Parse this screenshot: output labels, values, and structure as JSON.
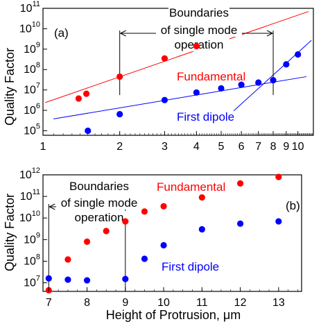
{
  "chart_data": [
    {
      "panel": "(a)",
      "type": "scatter",
      "x_scale": "log",
      "y_scale": "log",
      "xlim": [
        1,
        11.5
      ],
      "ylim": [
        60000,
        100000000000
      ],
      "ylabel": "Quality Factor",
      "xticks": [
        {
          "v": 1,
          "label": "1"
        },
        {
          "v": 2,
          "label": "2"
        },
        {
          "v": 3,
          "label": "3"
        },
        {
          "v": 4,
          "label": "4"
        },
        {
          "v": 5,
          "label": "5"
        },
        {
          "v": 6,
          "label": "6"
        },
        {
          "v": 7,
          "label": "7"
        },
        {
          "v": 8,
          "label": "8"
        },
        {
          "v": 9,
          "label": "9"
        },
        {
          "v": 10,
          "label": "10"
        }
      ],
      "yticks": [
        {
          "v": 100000,
          "base": "10",
          "exp": "5"
        },
        {
          "v": 1000000,
          "base": "10",
          "exp": "6"
        },
        {
          "v": 10000000,
          "base": "10",
          "exp": "7"
        },
        {
          "v": 100000000,
          "base": "10",
          "exp": "8"
        },
        {
          "v": 1000000000,
          "base": "10",
          "exp": "9"
        },
        {
          "v": 10000000000,
          "base": "10",
          "exp": "10"
        },
        {
          "v": 100000000000,
          "base": "10",
          "exp": "11"
        }
      ],
      "series": [
        {
          "name": "Fundamental",
          "color": "#ff0000",
          "x": [
            1.38,
            1.48,
            2.0,
            3.0,
            4.0
          ],
          "y": [
            3800000,
            6500000,
            45000000,
            350000000,
            1400000000
          ],
          "fit_line": {
            "x": [
              1.02,
              11.0
            ],
            "y": [
              2400000,
              70000000000
            ]
          }
        },
        {
          "name": "First dipole",
          "color": "#0000ff",
          "x": [
            1.5,
            2.0,
            3.0,
            4.0,
            5.0,
            6.0,
            7.0,
            8.0,
            9.0,
            10.0
          ],
          "y": [
            100000,
            650000,
            3200000,
            7500000,
            12000000,
            18000000,
            23000000,
            30000000,
            180000000,
            550000000
          ],
          "fit_lines": [
            {
              "x": [
                1.1,
                10.8
              ],
              "y": [
                380000,
                45000000
              ]
            },
            {
              "x": [
                5.6,
                11.3
              ],
              "y": [
                950000,
                2700000000
              ]
            }
          ]
        }
      ],
      "annotation": {
        "text_line1": "Boundaries",
        "text_line2": "of single mode",
        "text_line3": "operation",
        "x_from": 2,
        "x_to": 8
      }
    },
    {
      "panel": "(b)",
      "type": "scatter",
      "x_scale": "linear",
      "y_scale": "log",
      "xlim": [
        6.85,
        13.6
      ],
      "ylim": [
        4000000,
        1000000000000
      ],
      "xlabel_main": "Height of Protrusion, ",
      "xlabel_unit": "μm",
      "ylabel": "Quality Factor",
      "xticks": [
        {
          "v": 7,
          "label": "7"
        },
        {
          "v": 8,
          "label": "8"
        },
        {
          "v": 9,
          "label": "9"
        },
        {
          "v": 10,
          "label": "10"
        },
        {
          "v": 11,
          "label": "11"
        },
        {
          "v": 12,
          "label": "12"
        },
        {
          "v": 13,
          "label": "13"
        }
      ],
      "yticks": [
        {
          "v": 10000000,
          "base": "10",
          "exp": "7"
        },
        {
          "v": 100000000,
          "base": "10",
          "exp": "8"
        },
        {
          "v": 1000000000,
          "base": "10",
          "exp": "9"
        },
        {
          "v": 10000000000,
          "base": "10",
          "exp": "10"
        },
        {
          "v": 100000000000,
          "base": "10",
          "exp": "11"
        },
        {
          "v": 1000000000000,
          "base": "10",
          "exp": "12"
        }
      ],
      "series": [
        {
          "name": "Fundamental",
          "color": "#ff0000",
          "x": [
            7.0,
            7.5,
            8.0,
            8.5,
            9.0,
            9.5,
            10.0,
            11.0,
            12.0,
            13.0
          ],
          "y": [
            4500000,
            120000000,
            800000000,
            2500000000,
            7000000000,
            20000000000,
            35000000000,
            90000000000,
            400000000000,
            800000000000
          ]
        },
        {
          "name": "First dipole",
          "color": "#0000ff",
          "x": [
            7.0,
            7.5,
            8.0,
            9.0,
            9.5,
            10.0,
            11.0,
            12.0,
            13.0
          ],
          "y": [
            16000000,
            14000000,
            13000000,
            15000000,
            130000000,
            550000000,
            3000000000,
            5500000000,
            7000000000
          ]
        }
      ],
      "annotation": {
        "text_line1": "Boundaries",
        "text_line2": "of single mode",
        "text_line3": "operation",
        "x_from": 7,
        "x_to": 9
      }
    }
  ]
}
